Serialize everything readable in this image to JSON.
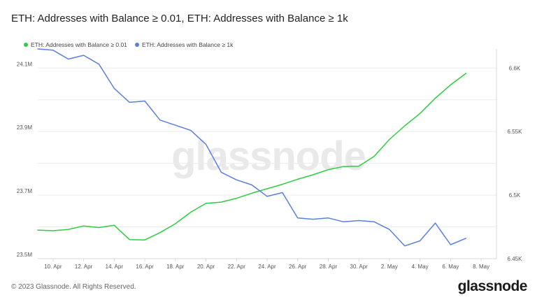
{
  "title": "ETH: Addresses with Balance ≥ 0.01, ETH: Addresses with Balance ≥ 1k",
  "footer": {
    "copyright": "© 2023 Glassnode. All Rights Reserved.",
    "brand": "glassnode"
  },
  "watermark": "glassnode",
  "colors": {
    "series_a": "#2ecc40",
    "series_b": "#5b7fdf",
    "grid": "#ececec",
    "axis": "#d4d9e4"
  },
  "chart_data": {
    "type": "line",
    "legend_position": "top-left",
    "grid": true,
    "x_ticks": [
      "10. Apr",
      "12. Apr",
      "14. Apr",
      "16. Apr",
      "18. Apr",
      "20. Apr",
      "22. Apr",
      "24. Apr",
      "26. Apr",
      "28. Apr",
      "30. Apr",
      "2. May",
      "4. May",
      "6. May",
      "8. May"
    ],
    "x_range": [
      "2023-04-09",
      "2023-05-09"
    ],
    "y_left": {
      "ticks": [
        "23.5M",
        "23.7M",
        "23.9M",
        "24.1M"
      ],
      "tick_values": [
        23500000,
        23700000,
        23900000,
        24100000
      ],
      "ylim": [
        23500000,
        24160000
      ]
    },
    "y_right": {
      "ticks": [
        "6.45K",
        "6.5K",
        "6.55K",
        "6.6K"
      ],
      "tick_values": [
        6450,
        6500,
        6550,
        6600
      ],
      "ylim": [
        6450,
        6615
      ]
    },
    "series": [
      {
        "name": "ETH: Addresses with Balance ≥ 0.01",
        "axis": "left",
        "color": "#2ecc40",
        "x": [
          "2023-04-09",
          "2023-04-10",
          "2023-04-11",
          "2023-04-12",
          "2023-04-13",
          "2023-04-14",
          "2023-04-15",
          "2023-04-16",
          "2023-04-17",
          "2023-04-18",
          "2023-04-19",
          "2023-04-20",
          "2023-04-21",
          "2023-04-22",
          "2023-04-23",
          "2023-04-24",
          "2023-04-25",
          "2023-04-26",
          "2023-04-27",
          "2023-04-28",
          "2023-04-29",
          "2023-04-30",
          "2023-05-01",
          "2023-05-02",
          "2023-05-03",
          "2023-05-04",
          "2023-05-05",
          "2023-05-06",
          "2023-05-07"
        ],
        "values": [
          23590000,
          23588000,
          23592000,
          23603000,
          23598000,
          23605000,
          23560000,
          23559000,
          23582000,
          23610000,
          23646000,
          23674000,
          23678000,
          23690000,
          23706000,
          23720000,
          23734000,
          23750000,
          23764000,
          23780000,
          23790000,
          23791000,
          23822000,
          23875000,
          23918000,
          23957000,
          24005000,
          24047000,
          24083000
        ]
      },
      {
        "name": "ETH: Addresses with Balance ≥ 1k",
        "axis": "right",
        "color": "#5b7fdf",
        "x": [
          "2023-04-09",
          "2023-04-10",
          "2023-04-11",
          "2023-04-12",
          "2023-04-13",
          "2023-04-14",
          "2023-04-15",
          "2023-04-16",
          "2023-04-17",
          "2023-04-18",
          "2023-04-19",
          "2023-04-20",
          "2023-04-21",
          "2023-04-22",
          "2023-04-23",
          "2023-04-24",
          "2023-04-25",
          "2023-04-26",
          "2023-04-27",
          "2023-04-28",
          "2023-04-29",
          "2023-04-30",
          "2023-05-01",
          "2023-05-02",
          "2023-05-03",
          "2023-05-04",
          "2023-05-05",
          "2023-05-06",
          "2023-05-07"
        ],
        "values": [
          6615,
          6614,
          6607,
          6610,
          6603,
          6584,
          6573,
          6574,
          6559,
          6555,
          6551,
          6540,
          6518,
          6512,
          6508,
          6499,
          6502,
          6482,
          6481,
          6482,
          6479,
          6480,
          6479,
          6473,
          6460,
          6464,
          6478,
          6461,
          6466
        ]
      }
    ]
  }
}
